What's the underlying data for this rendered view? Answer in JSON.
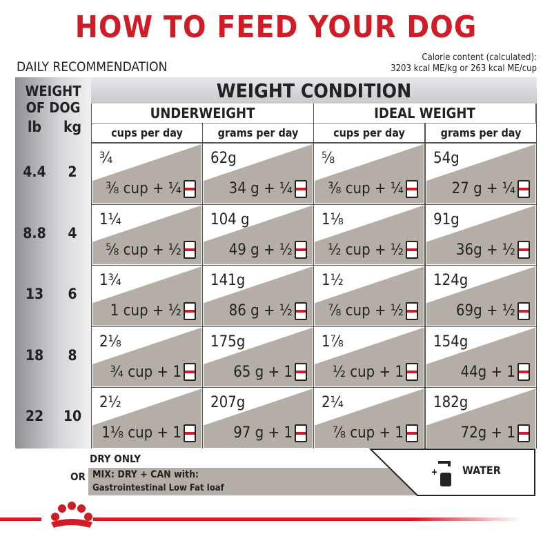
{
  "header": {
    "title": "HOW TO FEED YOUR DOG",
    "subtitle": "DAILY RECOMMENDATION",
    "calorie": [
      "Calorie content (calculated):",
      "3203 kcal ME/kg or 263 kcal ME/cup"
    ]
  },
  "table": {
    "weight_of_dog": [
      "WEIGHT",
      "OF DOG"
    ],
    "units": [
      "lb",
      "kg"
    ],
    "condition": "WEIGHT CONDITION",
    "groups": [
      "UNDERWEIGHT",
      "IDEAL WEIGHT"
    ],
    "subcolumns": [
      "cups per day",
      "grams per day",
      "cups per day",
      "grams per day"
    ],
    "rows": [
      {
        "lb": 4.4,
        "kg": 2,
        "cells": [
          [
            "¾",
            "⅜ cup + ¼"
          ],
          [
            "62g",
            "34 g + ¼"
          ],
          [
            "⅝",
            "⅜ cup + ¼"
          ],
          [
            "54g",
            "27 g + ¼"
          ]
        ]
      },
      {
        "lb": 8.8,
        "kg": 4,
        "cells": [
          [
            "1¼",
            "⅝ cup + ½"
          ],
          [
            "104 g",
            "49 g + ½"
          ],
          [
            "1⅛",
            "½ cup + ½"
          ],
          [
            "91g",
            "36g + ½"
          ]
        ]
      },
      {
        "lb": 13,
        "kg": 6,
        "cells": [
          [
            "1¾",
            "1 cup + ½"
          ],
          [
            "141g",
            "86 g + ½"
          ],
          [
            "1½",
            "⅞ cup + ½"
          ],
          [
            "124g",
            "69g + ½"
          ]
        ]
      },
      {
        "lb": 18,
        "kg": 8,
        "cells": [
          [
            "2⅛",
            "¾ cup + 1"
          ],
          [
            "175g",
            "65 g + 1"
          ],
          [
            "1⅞",
            "½ cup + 1"
          ],
          [
            "154g",
            "44g + 1"
          ]
        ]
      },
      {
        "lb": 22,
        "kg": 10,
        "cells": [
          [
            "2½",
            "1⅛ cup + 1"
          ],
          [
            "207g",
            "97 g + 1"
          ],
          [
            "2¼",
            "⅞ cup + 1"
          ],
          [
            "182g",
            "72g + 1"
          ]
        ]
      }
    ]
  },
  "footer": {
    "dry": "DRY ONLY",
    "or": "OR",
    "mix": "MIX: DRY + CAN with:",
    "product": "Gastrointestinal Low Fat loaf",
    "water": "WATER"
  }
}
